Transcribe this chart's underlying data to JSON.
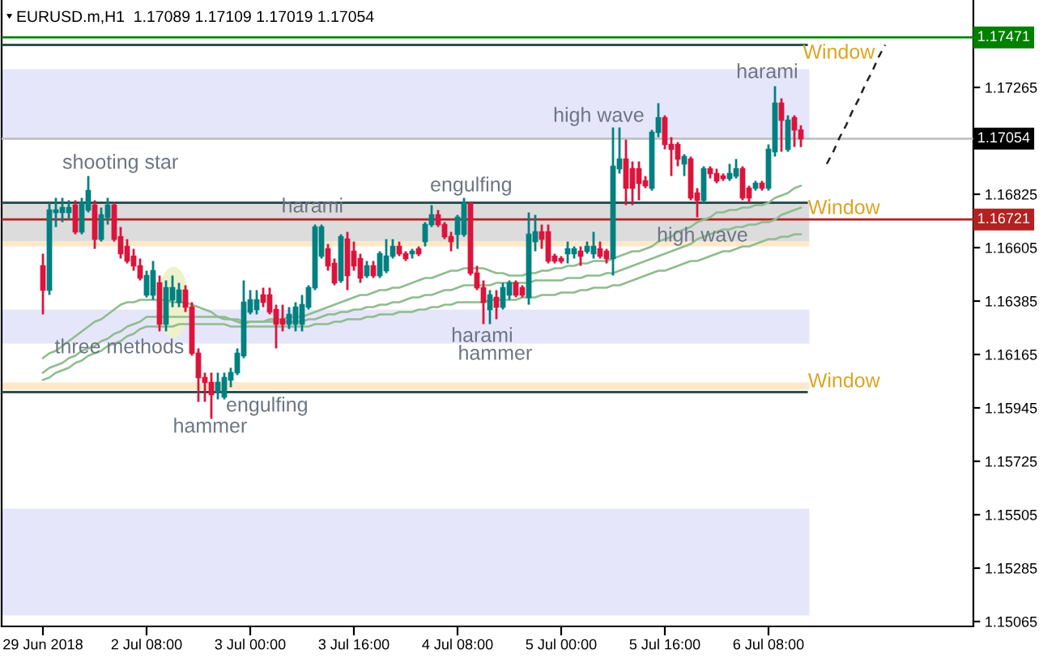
{
  "chart_data": {
    "type": "candlestick",
    "title": "EURUSD.m,H1  1.17089 1.17109 1.17019 1.17054",
    "categories": [
      "29 Jun 2018",
      null,
      null,
      null,
      null,
      null,
      null,
      null,
      null,
      null,
      null,
      null,
      null,
      null,
      null,
      null,
      "2 Jul 08:00",
      null,
      null,
      null,
      null,
      null,
      null,
      null,
      null,
      null,
      null,
      null,
      null,
      null,
      null,
      null,
      "3 Jul 00:00",
      null,
      null,
      null,
      null,
      null,
      null,
      null,
      null,
      null,
      null,
      null,
      null,
      null,
      null,
      null,
      "3 Jul 16:00",
      null,
      null,
      null,
      null,
      null,
      null,
      null,
      null,
      null,
      null,
      null,
      null,
      null,
      null,
      null,
      "4 Jul 08:00",
      null,
      null,
      null,
      null,
      null,
      null,
      null,
      null,
      null,
      null,
      null,
      null,
      null,
      null,
      null,
      "5 Jul 00:00",
      null,
      null,
      null,
      null,
      null,
      null,
      null,
      null,
      null,
      null,
      null,
      null,
      null,
      null,
      null,
      "5 Jul 16:00",
      null,
      null,
      null,
      null,
      null,
      null,
      null,
      null,
      null,
      null,
      null,
      null,
      null,
      null,
      null,
      "6 Jul 08:00",
      null,
      null,
      null,
      null,
      null,
      null,
      null,
      null,
      null,
      null,
      null,
      null,
      null,
      null,
      null,
      null,
      null,
      null,
      null,
      null,
      null,
      null,
      null,
      null,
      null,
      null,
      null,
      null,
      null,
      null,
      null
    ],
    "ohlc": [
      [
        1.1653,
        1.1658,
        1.1633,
        1.1643
      ],
      [
        1.1643,
        1.1679,
        1.1641,
        1.1676
      ],
      [
        1.1675,
        1.1681,
        1.1669,
        1.1676
      ],
      [
        1.1675,
        1.1681,
        1.1671,
        1.1677
      ],
      [
        1.1675,
        1.168,
        1.1672,
        1.1677
      ],
      [
        1.1678,
        1.168,
        1.1666,
        1.1667
      ],
      [
        1.1667,
        1.1681,
        1.1666,
        1.1679
      ],
      [
        1.1676,
        1.169,
        1.1675,
        1.1684
      ],
      [
        1.1678,
        1.168,
        1.166,
        1.1664
      ],
      [
        1.1664,
        1.1677,
        1.1663,
        1.1674
      ],
      [
        1.1673,
        1.1681,
        1.167,
        1.1678
      ],
      [
        1.1678,
        1.1679,
        1.1663,
        1.1664
      ],
      [
        1.1665,
        1.1669,
        1.1656,
        1.1658
      ],
      [
        1.1661,
        1.1664,
        1.1654,
        1.1655
      ],
      [
        1.1657,
        1.166,
        1.1651,
        1.1653
      ],
      [
        1.1653,
        1.1656,
        1.1647,
        1.1648
      ],
      [
        1.1641,
        1.1651,
        1.164,
        1.1649
      ],
      [
        1.1641,
        1.1655,
        1.1639,
        1.1651
      ],
      [
        1.1646,
        1.1649,
        1.1626,
        1.1629
      ],
      [
        1.1629,
        1.1647,
        1.1626,
        1.1644
      ],
      [
        1.1639,
        1.1649,
        1.1636,
        1.1644
      ],
      [
        1.1638,
        1.1646,
        1.1636,
        1.1643
      ],
      [
        1.1643,
        1.1645,
        1.1634,
        1.1636
      ],
      [
        1.1636,
        1.1638,
        1.1616,
        1.1617
      ],
      [
        1.1617,
        1.1619,
        1.1597,
        1.1607
      ],
      [
        1.1607,
        1.1609,
        1.1597,
        1.1605
      ],
      [
        1.1605,
        1.1609,
        1.159,
        1.16
      ],
      [
        1.1601,
        1.1609,
        1.1598,
        1.1605
      ],
      [
        1.1599,
        1.1609,
        1.1598,
        1.1607
      ],
      [
        1.1606,
        1.1611,
        1.1603,
        1.1609
      ],
      [
        1.1609,
        1.1619,
        1.1608,
        1.1617
      ],
      [
        1.1616,
        1.1647,
        1.1615,
        1.1638
      ],
      [
        1.1634,
        1.1643,
        1.1633,
        1.1639
      ],
      [
        1.1635,
        1.1643,
        1.1633,
        1.1639
      ],
      [
        1.1641,
        1.1644,
        1.1636,
        1.1638
      ],
      [
        1.1641,
        1.1644,
        1.1633,
        1.1634
      ],
      [
        1.1635,
        1.1637,
        1.1619,
        1.1629
      ],
      [
        1.1631,
        1.1637,
        1.1626,
        1.1629
      ],
      [
        1.1629,
        1.1636,
        1.1627,
        1.1633
      ],
      [
        1.1629,
        1.1638,
        1.1626,
        1.1636
      ],
      [
        1.1629,
        1.1641,
        1.1626,
        1.1637
      ],
      [
        1.1636,
        1.1645,
        1.1635,
        1.1644
      ],
      [
        1.1644,
        1.167,
        1.1643,
        1.1669
      ],
      [
        1.1657,
        1.167,
        1.1656,
        1.1669
      ],
      [
        1.166,
        1.1662,
        1.1651,
        1.1653
      ],
      [
        1.1654,
        1.1656,
        1.1645,
        1.1646
      ],
      [
        1.1647,
        1.1666,
        1.1646,
        1.1665
      ],
      [
        1.1664,
        1.1667,
        1.1643,
        1.1649
      ],
      [
        1.1659,
        1.1663,
        1.1651,
        1.1653
      ],
      [
        1.1656,
        1.1658,
        1.1646,
        1.1648
      ],
      [
        1.1649,
        1.1655,
        1.1648,
        1.1653
      ],
      [
        1.1653,
        1.1655,
        1.1648,
        1.1649
      ],
      [
        1.1649,
        1.1659,
        1.1648,
        1.1658
      ],
      [
        1.1651,
        1.1664,
        1.165,
        1.1657
      ],
      [
        1.1657,
        1.1664,
        1.1656,
        1.1661
      ],
      [
        1.1661,
        1.1663,
        1.1657,
        1.1658
      ],
      [
        1.1658,
        1.1659,
        1.1655,
        1.1656
      ],
      [
        1.1658,
        1.166,
        1.1656,
        1.1659
      ],
      [
        1.166,
        1.1661,
        1.1657,
        1.1658
      ],
      [
        1.1663,
        1.1671,
        1.1661,
        1.167
      ],
      [
        1.167,
        1.1678,
        1.1669,
        1.1674
      ],
      [
        1.1674,
        1.1676,
        1.1669,
        1.167
      ],
      [
        1.167,
        1.1671,
        1.1664,
        1.1665
      ],
      [
        1.1665,
        1.1667,
        1.1659,
        1.1663
      ],
      [
        1.1666,
        1.1674,
        1.166,
        1.1673
      ],
      [
        1.1666,
        1.1681,
        1.1665,
        1.1679
      ],
      [
        1.1679,
        1.1679,
        1.1649,
        1.165
      ],
      [
        1.165,
        1.1653,
        1.1643,
        1.1644
      ],
      [
        1.1644,
        1.1647,
        1.1629,
        1.1638
      ],
      [
        1.1635,
        1.1643,
        1.1629,
        1.1641
      ],
      [
        1.164,
        1.1643,
        1.1631,
        1.1636
      ],
      [
        1.1636,
        1.1646,
        1.1635,
        1.1644
      ],
      [
        1.1641,
        1.1647,
        1.1639,
        1.1646
      ],
      [
        1.1646,
        1.1647,
        1.164,
        1.1641
      ],
      [
        1.1644,
        1.1645,
        1.164,
        1.1641
      ],
      [
        1.164,
        1.1675,
        1.1637,
        1.1666
      ],
      [
        1.1663,
        1.1674,
        1.1659,
        1.1667
      ],
      [
        1.1667,
        1.167,
        1.166,
        1.1664
      ],
      [
        1.1667,
        1.167,
        1.1654,
        1.1655
      ],
      [
        1.1657,
        1.1658,
        1.1654,
        1.1655
      ],
      [
        1.1656,
        1.1657,
        1.1654,
        1.1655
      ],
      [
        1.1658,
        1.1663,
        1.1654,
        1.166
      ],
      [
        1.1658,
        1.1661,
        1.1656,
        1.166
      ],
      [
        1.1659,
        1.1661,
        1.1653,
        1.1657
      ],
      [
        1.1659,
        1.1663,
        1.1658,
        1.1661
      ],
      [
        1.1658,
        1.1667,
        1.1656,
        1.1661
      ],
      [
        1.166,
        1.1663,
        1.1656,
        1.1657
      ],
      [
        1.1659,
        1.166,
        1.1654,
        1.1656
      ],
      [
        1.1656,
        1.171,
        1.1649,
        1.1694
      ],
      [
        1.1693,
        1.171,
        1.1691,
        1.1697
      ],
      [
        1.1697,
        1.1705,
        1.1678,
        1.1685
      ],
      [
        1.1693,
        1.1696,
        1.1678,
        1.1685
      ],
      [
        1.1693,
        1.1696,
        1.168,
        1.1687
      ],
      [
        1.1688,
        1.169,
        1.1685,
        1.1686
      ],
      [
        1.1685,
        1.1709,
        1.1684,
        1.1708
      ],
      [
        1.1708,
        1.172,
        1.1706,
        1.1714
      ],
      [
        1.1714,
        1.1715,
        1.1701,
        1.1703
      ],
      [
        1.1703,
        1.1706,
        1.169,
        1.1701
      ],
      [
        1.1703,
        1.1704,
        1.1694,
        1.1697
      ],
      [
        1.1695,
        1.1699,
        1.169,
        1.1698
      ],
      [
        1.1697,
        1.1698,
        1.168,
        1.1681
      ],
      [
        1.1683,
        1.1685,
        1.1673,
        1.168
      ],
      [
        1.168,
        1.1694,
        1.1679,
        1.1693
      ],
      [
        1.1693,
        1.1694,
        1.1689,
        1.1691
      ],
      [
        1.1691,
        1.1693,
        1.1687,
        1.1688
      ],
      [
        1.169,
        1.1691,
        1.1688,
        1.1689
      ],
      [
        1.1689,
        1.1695,
        1.1688,
        1.1691
      ],
      [
        1.169,
        1.1697,
        1.1689,
        1.1693
      ],
      [
        1.1693,
        1.1694,
        1.168,
        1.1681
      ],
      [
        1.1685,
        1.1686,
        1.1679,
        1.1681
      ],
      [
        1.1685,
        1.1688,
        1.1684,
        1.1687
      ],
      [
        1.1687,
        1.1688,
        1.1684,
        1.1685
      ],
      [
        1.1685,
        1.1703,
        1.1684,
        1.1701
      ],
      [
        1.17,
        1.1727,
        1.1698,
        1.172
      ],
      [
        1.172,
        1.1722,
        1.17,
        1.1713
      ],
      [
        1.1701,
        1.1715,
        1.17,
        1.1713
      ],
      [
        1.1714,
        1.1715,
        1.1702,
        1.1709
      ],
      [
        1.17089,
        1.17109,
        1.17019,
        1.17054
      ],
      null,
      null,
      null,
      null,
      null,
      null,
      null,
      null,
      null,
      null,
      null,
      null,
      null,
      null,
      null,
      null,
      null,
      null,
      null,
      null,
      null,
      null,
      null,
      null,
      null,
      null
    ],
    "colors": [
      "#dc143c",
      "#008080",
      "#008080",
      "#008080",
      "#008080",
      "#dc143c",
      "#008080",
      "#008080",
      "#dc143c",
      "#008080",
      "#008080",
      "#dc143c",
      "#dc143c",
      "#dc143c",
      "#dc143c",
      "#dc143c",
      "#008080",
      "#008080",
      "#dc143c",
      "#008080",
      "#008080",
      "#008080",
      "#dc143c",
      "#dc143c",
      "#dc143c",
      "#dc143c",
      "#dc143c",
      "#008080",
      "#008080",
      "#008080",
      "#008080",
      "#008080",
      "#008080",
      "#008080",
      "#dc143c",
      "#dc143c",
      "#dc143c",
      "#dc143c",
      "#008080",
      "#008080",
      "#008080",
      "#008080",
      "#008080",
      "#008080",
      "#dc143c",
      "#dc143c",
      "#008080",
      "#dc143c",
      "#dc143c",
      "#dc143c",
      "#008080",
      "#dc143c",
      "#008080",
      "#008080",
      "#008080",
      "#dc143c",
      "#dc143c",
      "#008080",
      "#dc143c",
      "#008080",
      "#008080",
      "#dc143c",
      "#dc143c",
      "#dc143c",
      "#008080",
      "#008080",
      "#dc143c",
      "#dc143c",
      "#dc143c",
      "#008080",
      "#dc143c",
      "#008080",
      "#008080",
      "#dc143c",
      "#dc143c",
      "#008080",
      "#008080",
      "#dc143c",
      "#dc143c",
      "#dc143c",
      "#dc143c",
      "#008080",
      "#008080",
      "#dc143c",
      "#008080",
      "#008080",
      "#dc143c",
      "#dc143c",
      "#008080",
      "#008080",
      "#dc143c",
      "#dc143c",
      "#dc143c",
      "#dc143c",
      "#008080",
      "#008080",
      "#dc143c",
      "#dc143c",
      "#dc143c",
      "#008080",
      "#dc143c",
      "#dc143c",
      "#008080",
      "#dc143c",
      "#dc143c",
      "#dc143c",
      "#008080",
      "#008080",
      "#dc143c",
      "#dc143c",
      "#008080",
      "#dc143c",
      "#008080",
      "#008080",
      "#dc143c",
      "#008080",
      "#dc143c",
      "#dc143c",
      null,
      null,
      null,
      null,
      null,
      null,
      null,
      null,
      null,
      null,
      null,
      null,
      null,
      null,
      null,
      null,
      null,
      null,
      null,
      null,
      null,
      null,
      null,
      null,
      null,
      null
    ],
    "series": [
      {
        "type": "line",
        "color": "#8fbc8f",
        "values": [
          1.1615,
          1.1617,
          1.1618,
          1.162,
          1.1622,
          1.1624,
          1.1626,
          1.1628,
          1.163,
          1.1631,
          1.1633,
          1.1635,
          1.1637,
          1.1638,
          1.1638,
          1.1639,
          1.1639,
          1.1639,
          1.1639,
          1.1639,
          1.1638,
          1.1638,
          1.1638,
          1.1637,
          1.1636,
          1.1635,
          1.1634,
          1.1632,
          1.1632,
          1.1631,
          1.163,
          1.1629,
          1.163,
          1.163,
          1.163,
          1.1631,
          1.1631,
          1.1631,
          1.1632,
          1.1632,
          1.1632,
          1.1633,
          1.1634,
          1.1635,
          1.1636,
          1.1637,
          1.1638,
          1.1639,
          1.164,
          1.1641,
          1.1641,
          1.1642,
          1.1643,
          1.1643,
          1.1644,
          1.1644,
          1.1645,
          1.1646,
          1.1647,
          1.1648,
          1.1648,
          1.1649,
          1.165,
          1.1651,
          1.1651,
          1.1652,
          1.1652,
          1.1652,
          1.1652,
          1.1651,
          1.165,
          1.165,
          1.1649,
          1.1649,
          1.1649,
          1.165,
          1.165,
          1.1651,
          1.1651,
          1.1652,
          1.1652,
          1.1653,
          1.1653,
          1.1654,
          1.1654,
          1.1655,
          1.1655,
          1.1655,
          1.1656,
          1.1657,
          1.1658,
          1.1659,
          1.1659,
          1.166,
          1.1661,
          1.1663,
          1.1664,
          1.1665,
          1.1667,
          1.1668,
          1.1669,
          1.1671,
          1.1672,
          1.1673,
          1.1675,
          1.1675,
          1.1676,
          1.1676,
          1.1677,
          1.1677,
          1.1678,
          1.1678,
          1.1679,
          1.1681,
          1.1682,
          1.1683,
          1.1685,
          1.1686,
          null,
          null,
          null,
          null,
          null,
          null,
          null,
          null,
          null,
          null,
          null,
          null,
          null,
          null,
          null,
          null,
          null,
          null,
          null,
          null,
          null,
          null,
          null,
          null,
          null,
          null
        ]
      },
      {
        "type": "line",
        "color": "#8fbc8f",
        "values": [
          1.1609,
          1.1611,
          1.1612,
          1.1613,
          1.1615,
          1.1616,
          1.1618,
          1.1619,
          1.162,
          1.1622,
          1.1623,
          1.1625,
          1.1626,
          1.1628,
          1.1629,
          1.163,
          1.1632,
          1.1632,
          1.1632,
          1.1632,
          1.1632,
          1.1632,
          1.1632,
          1.1632,
          1.1632,
          1.1632,
          1.1632,
          1.1632,
          1.1631,
          1.1631,
          1.1631,
          1.163,
          1.163,
          1.163,
          1.163,
          1.163,
          1.163,
          1.163,
          1.163,
          1.163,
          1.163,
          1.1631,
          1.1631,
          1.1632,
          1.1633,
          1.1633,
          1.1634,
          1.1634,
          1.1635,
          1.1635,
          1.1636,
          1.1636,
          1.1637,
          1.1637,
          1.1638,
          1.1638,
          1.1639,
          1.164,
          1.164,
          1.1641,
          1.1641,
          1.1642,
          1.1643,
          1.1643,
          1.1644,
          1.1645,
          1.1645,
          1.1645,
          1.1645,
          1.1645,
          1.1646,
          1.1646,
          1.1646,
          1.1646,
          1.1646,
          1.1646,
          1.1647,
          1.1647,
          1.1647,
          1.1647,
          1.1647,
          1.1648,
          1.1648,
          1.1648,
          1.1649,
          1.1649,
          1.1649,
          1.165,
          1.165,
          1.1651,
          1.1652,
          1.1653,
          1.1654,
          1.1655,
          1.1656,
          1.1657,
          1.1658,
          1.1659,
          1.166,
          1.1661,
          1.1662,
          1.1664,
          1.1665,
          1.1666,
          1.1667,
          1.1668,
          1.1668,
          1.1669,
          1.1669,
          1.167,
          1.167,
          1.1671,
          1.1671,
          1.1672,
          1.1674,
          1.1675,
          1.1676,
          1.1677,
          null,
          null,
          null,
          null,
          null,
          null,
          null,
          null,
          null,
          null,
          null,
          null,
          null,
          null,
          null,
          null,
          null,
          null,
          null,
          null,
          null,
          null,
          null,
          null,
          null,
          null
        ]
      },
      {
        "type": "line",
        "color": "#8fbc8f",
        "values": [
          1.1606,
          1.1607,
          1.1609,
          1.161,
          1.1611,
          1.1613,
          1.1614,
          1.1616,
          1.1617,
          1.1618,
          1.162,
          1.1621,
          1.1622,
          1.1624,
          1.1625,
          1.1627,
          1.1628,
          1.1628,
          1.1628,
          1.1628,
          1.1628,
          1.1629,
          1.1629,
          1.1629,
          1.1629,
          1.1629,
          1.1629,
          1.1629,
          1.1629,
          1.1628,
          1.1628,
          1.1628,
          1.1628,
          1.1628,
          1.1628,
          1.1628,
          1.1628,
          1.1628,
          1.1628,
          1.1628,
          1.1628,
          1.1628,
          1.1629,
          1.1629,
          1.1629,
          1.163,
          1.163,
          1.1631,
          1.1631,
          1.1631,
          1.1632,
          1.1632,
          1.1633,
          1.1633,
          1.1633,
          1.1634,
          1.1634,
          1.1634,
          1.1635,
          1.1635,
          1.1636,
          1.1636,
          1.1637,
          1.1637,
          1.1638,
          1.1638,
          1.1638,
          1.1638,
          1.1638,
          1.1639,
          1.1639,
          1.1639,
          1.1639,
          1.1639,
          1.164,
          1.164,
          1.164,
          1.1641,
          1.1641,
          1.1641,
          1.1642,
          1.1642,
          1.1642,
          1.1643,
          1.1643,
          1.1644,
          1.1644,
          1.1644,
          1.1645,
          1.1645,
          1.1646,
          1.1647,
          1.1648,
          1.1649,
          1.165,
          1.1651,
          1.1651,
          1.1652,
          1.1653,
          1.1654,
          1.1655,
          1.1655,
          1.1656,
          1.1657,
          1.1658,
          1.1659,
          1.1659,
          1.166,
          1.1661,
          1.1661,
          1.1662,
          1.1663,
          1.1664,
          1.1664,
          1.1665,
          1.1665,
          1.1666,
          1.1666,
          null,
          null,
          null,
          null,
          null,
          null,
          null,
          null,
          null,
          null,
          null,
          null,
          null,
          null,
          null,
          null,
          null,
          null,
          null,
          null,
          null,
          null,
          null,
          null,
          null,
          null
        ]
      },
      {
        "type": "line",
        "color": "#202020",
        "line_style": "dashed",
        "values": [
          null,
          null,
          null,
          null,
          null,
          null,
          null,
          null,
          null,
          null,
          null,
          null,
          null,
          null,
          null,
          null,
          null,
          null,
          null,
          null,
          null,
          null,
          null,
          null,
          null,
          null,
          null,
          null,
          null,
          null,
          null,
          null,
          null,
          null,
          null,
          null,
          null,
          null,
          null,
          null,
          null,
          null,
          null,
          null,
          null,
          null,
          null,
          null,
          null,
          null,
          null,
          null,
          null,
          null,
          null,
          null,
          null,
          null,
          null,
          null,
          null,
          null,
          null,
          null,
          null,
          null,
          null,
          null,
          null,
          null,
          null,
          null,
          null,
          null,
          null,
          null,
          null,
          null,
          null,
          null,
          null,
          null,
          null,
          null,
          null,
          null,
          null,
          null,
          null,
          null,
          null,
          null,
          null,
          null,
          null,
          null,
          null,
          null,
          null,
          null,
          null,
          null,
          null,
          null,
          null,
          null,
          null,
          null,
          null,
          null,
          null,
          null,
          null,
          null,
          null,
          null,
          null,
          null,
          null,
          null,
          null,
          1.1695,
          1.17,
          1.1706,
          1.1711,
          1.1717,
          1.1722,
          1.1728,
          1.1733,
          1.1739,
          1.1744,
          null,
          null,
          null,
          null,
          null,
          null,
          null,
          null,
          null,
          null,
          null,
          null,
          null
        ]
      }
    ],
    "ylim": [
      1.15045,
      1.17625
    ],
    "yticks": [
      1.15065,
      1.15285,
      1.15505,
      1.15725,
      1.15945,
      1.16165,
      1.16385,
      1.16605,
      1.16825,
      1.17265
    ],
    "bands": [
      {
        "axis": "y",
        "from": 1.1705,
        "to": 1.1734,
        "color": "#e6e6fa"
      },
      {
        "axis": "y",
        "from": 1.1663,
        "to": 1.1679,
        "color": "#dcdcdc"
      },
      {
        "axis": "y",
        "from": 1.1661,
        "to": 1.1663,
        "color": "#fde9c9"
      },
      {
        "axis": "y",
        "from": 1.1621,
        "to": 1.1635,
        "color": "#e6e6fa"
      },
      {
        "axis": "y",
        "from": 1.1602,
        "to": 1.1605,
        "color": "#fde9c9"
      },
      {
        "axis": "y",
        "from": 1.1509,
        "to": 1.1553,
        "color": "#e6e6fa"
      }
    ],
    "ref_lines": [
      {
        "axis": "y",
        "value": 1.17471,
        "label": "1.17471",
        "color": "#008000"
      },
      {
        "axis": "y",
        "value": 1.17054,
        "label": "1.17054",
        "color": "#c0c0c0"
      },
      {
        "axis": "y",
        "value": 1.16721,
        "label": "1.16721",
        "color": "#b22222"
      },
      {
        "axis": "y",
        "value": 1.1744,
        "color": "#2f4f4f"
      },
      {
        "axis": "y",
        "value": 1.1679,
        "color": "#2f4f4f"
      },
      {
        "axis": "y",
        "value": 1.1601,
        "color": "#2f4f4f"
      }
    ],
    "annotations": [
      "shooting star",
      {
        "text": "harami",
        "y": 1.167
      },
      {
        "text": "engulfing",
        "y": 1.1681
      },
      "high wave",
      {
        "text": "harami",
        "y": 1.1727
      },
      {
        "text": "Window",
        "y": 1.1744
      },
      "Window",
      {
        "text": "high wave",
        "y": 1.1673
      },
      {
        "text": "three methods",
        "y": 1.1626
      },
      {
        "text": "harami",
        "y": 1.1629
      },
      {
        "text": "hammer",
        "y": 1.1629
      },
      {
        "text": "engulfing",
        "y": 1.1598
      },
      {
        "text": "hammer",
        "y": 1.159
      },
      "Window"
    ]
  }
}
